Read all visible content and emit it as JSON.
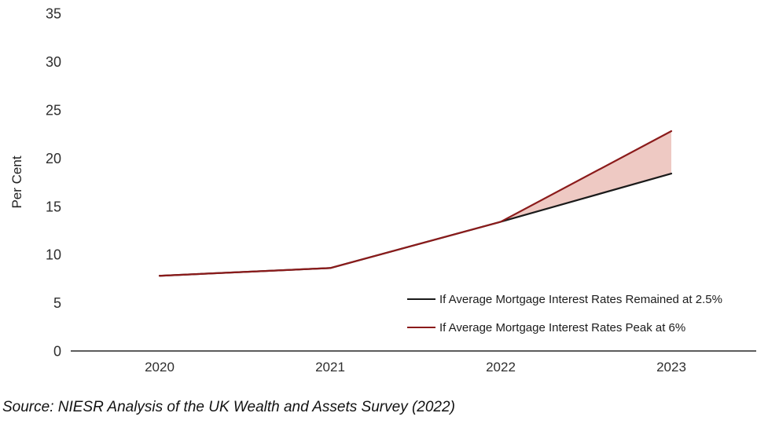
{
  "chart": {
    "source_note": "Source: NIESR Analysis of the UK Wealth and Assets Survey (2022)"
  },
  "chart_data": {
    "type": "line",
    "x": [
      2020,
      2021,
      2022,
      2023
    ],
    "series": [
      {
        "name": "If Average Mortgage Interest Rates Remained at 2.5%",
        "color": "#1a1a1a",
        "values": [
          7.8,
          8.6,
          13.4,
          18.4
        ]
      },
      {
        "name": "If Average Mortgage Interest Rates Peak at 6%",
        "color": "#8b1b1b",
        "values": [
          7.8,
          8.6,
          13.4,
          22.8
        ]
      }
    ],
    "fill_between": {
      "from_x": 2022,
      "to_x": 2023,
      "upper_series": 1,
      "lower_series": 0,
      "color": "#eec9c3"
    },
    "title": "",
    "xlabel": "",
    "ylabel": "Per Cent",
    "ylim": [
      0,
      35
    ],
    "yticks": [
      0,
      5,
      10,
      15,
      20,
      25,
      30,
      35
    ],
    "xticks": [
      2020,
      2021,
      2022,
      2023
    ],
    "grid": false,
    "legend_position": "inside-lower-right",
    "axis_color": "#262626",
    "tick_color": "#2e2e2e"
  }
}
